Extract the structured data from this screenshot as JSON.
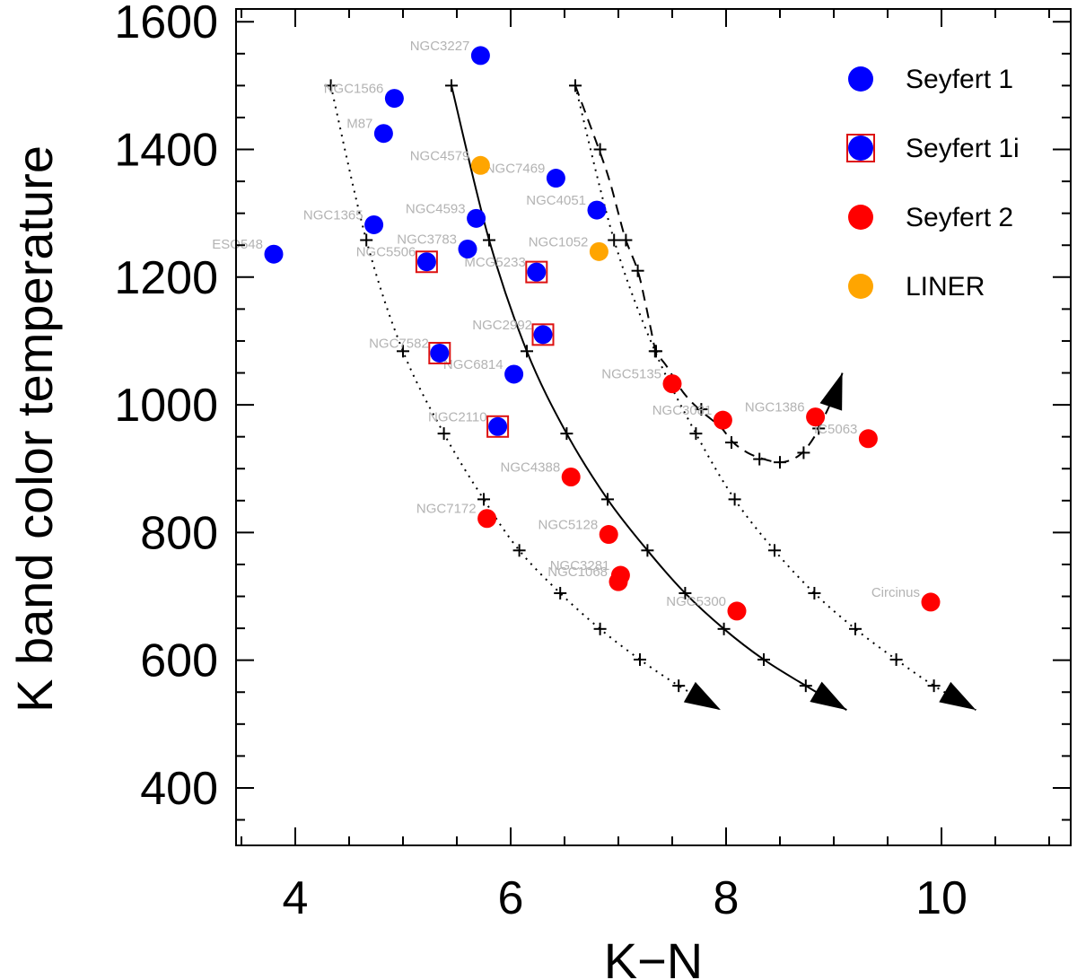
{
  "chart_data": {
    "type": "scatter",
    "xlabel": "K−N",
    "ylabel": "K band color temperature",
    "xlim": [
      3.45,
      11.2
    ],
    "ylim": [
      310,
      1620
    ],
    "xticks": [
      4,
      6,
      8,
      10
    ],
    "yticks": [
      400,
      600,
      800,
      1000,
      1200,
      1400,
      1600
    ],
    "x_minor_step": 0.5,
    "y_minor_step": 50,
    "colors": {
      "seyfert1": "#0000ff",
      "seyfert2": "#ff0000",
      "liner": "#ffa500",
      "box": "#dd1111",
      "label": "#b3b3b3"
    },
    "legend": {
      "position": "top-right",
      "entries": [
        {
          "label": "Seyfert 1",
          "marker": "seyfert1"
        },
        {
          "label": "Seyfert 1i",
          "marker": "seyfert1i"
        },
        {
          "label": "Seyfert 2",
          "marker": "seyfert2"
        },
        {
          "label": "LINER",
          "marker": "liner"
        }
      ]
    },
    "points": [
      {
        "name": "NGC3227",
        "x": 5.72,
        "y": 1547,
        "cls": "seyfert1"
      },
      {
        "name": "NGC1566",
        "x": 4.92,
        "y": 1480,
        "cls": "seyfert1"
      },
      {
        "name": "M87",
        "x": 4.82,
        "y": 1425,
        "cls": "seyfert1"
      },
      {
        "name": "NGC4579",
        "x": 5.72,
        "y": 1375,
        "cls": "liner"
      },
      {
        "name": "NGC7469",
        "x": 6.42,
        "y": 1355,
        "cls": "seyfert1"
      },
      {
        "name": "NGC4051",
        "x": 6.8,
        "y": 1305,
        "cls": "seyfert1"
      },
      {
        "name": "NGC4593",
        "x": 5.68,
        "y": 1292,
        "cls": "seyfert1"
      },
      {
        "name": "NGC1365",
        "x": 4.73,
        "y": 1282,
        "cls": "seyfert1"
      },
      {
        "name": "NGC3783",
        "x": 5.6,
        "y": 1244,
        "cls": "seyfert1"
      },
      {
        "name": "NGC1052",
        "x": 6.82,
        "y": 1240,
        "cls": "liner"
      },
      {
        "name": "ESO548",
        "x": 3.8,
        "y": 1236,
        "cls": "seyfert1"
      },
      {
        "name": "NGC5506",
        "x": 5.22,
        "y": 1224,
        "cls": "seyfert1i"
      },
      {
        "name": "MCG5233",
        "x": 6.24,
        "y": 1208,
        "cls": "seyfert1i"
      },
      {
        "name": "NGC2992",
        "x": 6.3,
        "y": 1110,
        "cls": "seyfert1i"
      },
      {
        "name": "NGC7582",
        "x": 5.34,
        "y": 1081,
        "cls": "seyfert1i"
      },
      {
        "name": "NGC6814",
        "x": 6.03,
        "y": 1048,
        "cls": "seyfert1"
      },
      {
        "name": "NGC2110",
        "x": 5.88,
        "y": 966,
        "cls": "seyfert1i"
      },
      {
        "name": "NGC5135",
        "x": 7.5,
        "y": 1033,
        "cls": "seyfert2"
      },
      {
        "name": "NGC3081",
        "x": 7.97,
        "y": 976,
        "cls": "seyfert2"
      },
      {
        "name": "NGC1386",
        "x": 8.83,
        "y": 981,
        "cls": "seyfert2"
      },
      {
        "name": "IC5063",
        "x": 9.32,
        "y": 947,
        "cls": "seyfert2"
      },
      {
        "name": "NGC4388",
        "x": 6.56,
        "y": 887,
        "cls": "seyfert2"
      },
      {
        "name": "NGC7172",
        "x": 5.78,
        "y": 822,
        "cls": "seyfert2"
      },
      {
        "name": "NGC5128",
        "x": 6.91,
        "y": 797,
        "cls": "seyfert2"
      },
      {
        "name": "NGC3281",
        "x": 7.02,
        "y": 733,
        "cls": "seyfert2"
      },
      {
        "name": "NGC1068",
        "x": 7.0,
        "y": 723,
        "cls": "seyfert2"
      },
      {
        "name": "NGC5300",
        "x": 8.1,
        "y": 677,
        "cls": "seyfert2"
      },
      {
        "name": "Circinus",
        "x": 9.9,
        "y": 691,
        "cls": "seyfert2"
      }
    ],
    "tracks": [
      {
        "style": "dotted",
        "points": [
          [
            4.33,
            1500
          ],
          [
            4.66,
            1258
          ],
          [
            5.0,
            1084
          ],
          [
            5.38,
            955
          ],
          [
            5.75,
            852
          ],
          [
            6.08,
            772
          ],
          [
            6.46,
            705
          ],
          [
            6.83,
            649
          ],
          [
            7.2,
            601
          ],
          [
            7.56,
            560
          ],
          [
            7.95,
            522
          ]
        ]
      },
      {
        "style": "solid",
        "points": [
          [
            5.45,
            1500
          ],
          [
            5.8,
            1258
          ],
          [
            6.15,
            1084
          ],
          [
            6.52,
            955
          ],
          [
            6.9,
            852
          ],
          [
            7.27,
            772
          ],
          [
            7.62,
            705
          ],
          [
            7.98,
            649
          ],
          [
            8.35,
            601
          ],
          [
            8.74,
            560
          ],
          [
            9.12,
            522
          ]
        ]
      },
      {
        "style": "dotted",
        "points": [
          [
            6.6,
            1500
          ],
          [
            6.96,
            1258
          ],
          [
            7.34,
            1084
          ],
          [
            7.72,
            955
          ],
          [
            8.08,
            852
          ],
          [
            8.45,
            772
          ],
          [
            8.82,
            705
          ],
          [
            9.2,
            649
          ],
          [
            9.58,
            601
          ],
          [
            9.93,
            560
          ],
          [
            10.32,
            522
          ]
        ]
      },
      {
        "style": "dashed",
        "points": [
          [
            6.6,
            1500
          ],
          [
            6.82,
            1400
          ],
          [
            6.92,
            1350
          ],
          [
            7.0,
            1300
          ],
          [
            7.07,
            1258
          ],
          [
            7.18,
            1210
          ],
          [
            7.25,
            1160
          ],
          [
            7.3,
            1120
          ],
          [
            7.35,
            1084
          ],
          [
            7.45,
            1060
          ],
          [
            7.6,
            1020
          ],
          [
            7.75,
            993
          ],
          [
            7.95,
            965
          ],
          [
            8.06,
            942
          ],
          [
            8.2,
            925
          ],
          [
            8.35,
            915
          ],
          [
            8.5,
            910
          ],
          [
            8.62,
            915
          ],
          [
            8.72,
            927
          ],
          [
            8.82,
            950
          ],
          [
            8.88,
            970
          ],
          [
            8.95,
            995
          ],
          [
            9.02,
            1020
          ],
          [
            9.08,
            1050
          ]
        ],
        "ticks": [
          [
            6.83,
            1400
          ],
          [
            7.07,
            1258
          ],
          [
            7.18,
            1210
          ],
          [
            7.35,
            1084
          ],
          [
            7.77,
            993
          ],
          [
            8.05,
            941
          ],
          [
            8.31,
            915
          ],
          [
            8.5,
            910
          ],
          [
            8.72,
            925
          ],
          [
            8.86,
            963
          ]
        ]
      }
    ]
  }
}
